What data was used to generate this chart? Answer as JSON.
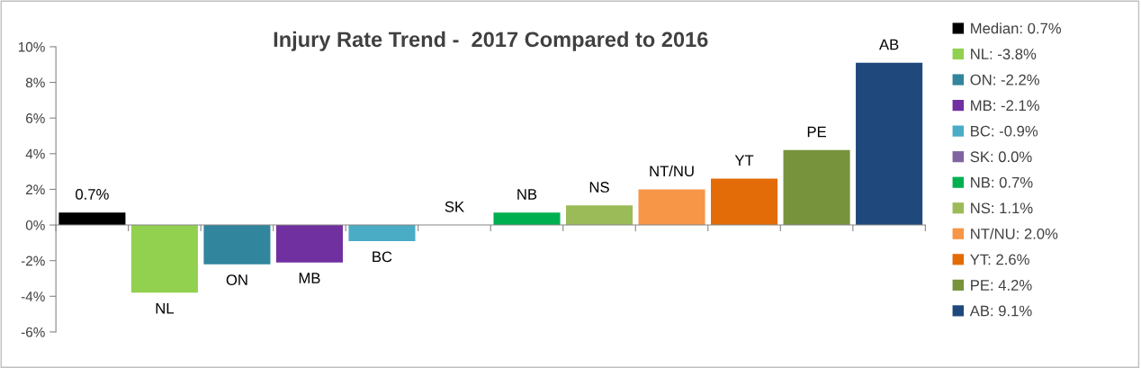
{
  "chart_data": {
    "type": "bar",
    "title": "Injury Rate Trend -  2017 Compared to 2016",
    "stacked": true,
    "legend": "right",
    "categories": [
      null,
      null,
      null,
      null,
      null,
      null,
      null,
      null,
      null,
      null,
      null,
      null
    ],
    "ylim": [
      -6,
      10
    ],
    "yticks": [
      {
        "value": -6,
        "label": "-6%"
      },
      {
        "value": -4,
        "label": "-4%"
      },
      {
        "value": -2,
        "label": "-2%"
      },
      {
        "value": 0,
        "label": "0%"
      },
      {
        "value": 2,
        "label": "2%"
      },
      {
        "value": 4,
        "label": "4%"
      },
      {
        "value": 6,
        "label": "6%"
      },
      {
        "value": 8,
        "label": "8%"
      },
      {
        "value": 10,
        "label": "10%"
      }
    ],
    "series": [
      {
        "name": "Median: 0.7%",
        "color": "#000000",
        "values": [
          0.7,
          null,
          null,
          null,
          null,
          null,
          null,
          null,
          null,
          null,
          null,
          null
        ],
        "value_labels": [
          "0.7%",
          null,
          null,
          null,
          null,
          null,
          null,
          null,
          null,
          null,
          null,
          null
        ]
      },
      {
        "name": "NL: -3.8%",
        "color": "#92d050",
        "values": [
          null,
          -3.8,
          null,
          null,
          null,
          null,
          null,
          null,
          null,
          null,
          null,
          null
        ],
        "value_labels": [
          null,
          "NL",
          null,
          null,
          null,
          null,
          null,
          null,
          null,
          null,
          null,
          null
        ]
      },
      {
        "name": "ON: -2.2%",
        "color": "#31859c",
        "values": [
          null,
          null,
          -2.2,
          null,
          null,
          null,
          null,
          null,
          null,
          null,
          null,
          null
        ],
        "value_labels": [
          null,
          null,
          "ON",
          null,
          null,
          null,
          null,
          null,
          null,
          null,
          null,
          null
        ]
      },
      {
        "name": "MB: -2.1%",
        "color": "#7030a0",
        "values": [
          null,
          null,
          null,
          -2.1,
          null,
          null,
          null,
          null,
          null,
          null,
          null,
          null
        ],
        "value_labels": [
          null,
          null,
          null,
          "MB",
          null,
          null,
          null,
          null,
          null,
          null,
          null,
          null
        ]
      },
      {
        "name": "BC: -0.9%",
        "color": "#4bacc6",
        "values": [
          null,
          null,
          null,
          null,
          -0.9,
          null,
          null,
          null,
          null,
          null,
          null,
          null
        ],
        "value_labels": [
          null,
          null,
          null,
          null,
          "BC",
          null,
          null,
          null,
          null,
          null,
          null,
          null
        ]
      },
      {
        "name": "SK: 0.0%",
        "color": "#8064a2",
        "values": [
          null,
          null,
          null,
          null,
          null,
          0.0,
          null,
          null,
          null,
          null,
          null,
          null
        ],
        "value_labels": [
          null,
          null,
          null,
          null,
          null,
          "SK",
          null,
          null,
          null,
          null,
          null,
          null
        ]
      },
      {
        "name": "NB: 0.7%",
        "color": "#00b050",
        "values": [
          null,
          null,
          null,
          null,
          null,
          null,
          0.7,
          null,
          null,
          null,
          null,
          null
        ],
        "value_labels": [
          null,
          null,
          null,
          null,
          null,
          null,
          "NB",
          null,
          null,
          null,
          null,
          null
        ]
      },
      {
        "name": "NS: 1.1%",
        "color": "#9bbb59",
        "values": [
          null,
          null,
          null,
          null,
          null,
          null,
          null,
          1.1,
          null,
          null,
          null,
          null
        ],
        "value_labels": [
          null,
          null,
          null,
          null,
          null,
          null,
          null,
          "NS",
          null,
          null,
          null,
          null
        ]
      },
      {
        "name": "NT/NU: 2.0%",
        "color": "#f79646",
        "values": [
          null,
          null,
          null,
          null,
          null,
          null,
          null,
          null,
          2.0,
          null,
          null,
          null
        ],
        "value_labels": [
          null,
          null,
          null,
          null,
          null,
          null,
          null,
          null,
          "NT/NU",
          null,
          null,
          null
        ]
      },
      {
        "name": "YT: 2.6%",
        "color": "#e36c09",
        "values": [
          null,
          null,
          null,
          null,
          null,
          null,
          null,
          null,
          null,
          2.6,
          null,
          null
        ],
        "value_labels": [
          null,
          null,
          null,
          null,
          null,
          null,
          null,
          null,
          null,
          "YT",
          null,
          null
        ]
      },
      {
        "name": "PE: 4.2%",
        "color": "#77933c",
        "values": [
          null,
          null,
          null,
          null,
          null,
          null,
          null,
          null,
          null,
          null,
          4.2,
          null
        ],
        "value_labels": [
          null,
          null,
          null,
          null,
          null,
          null,
          null,
          null,
          null,
          null,
          "PE",
          null
        ]
      },
      {
        "name": "AB: 9.1%",
        "color": "#1f497d",
        "values": [
          null,
          null,
          null,
          null,
          null,
          null,
          null,
          null,
          null,
          null,
          null,
          9.1
        ],
        "value_labels": [
          null,
          null,
          null,
          null,
          null,
          null,
          null,
          null,
          null,
          null,
          null,
          "AB"
        ]
      }
    ]
  }
}
